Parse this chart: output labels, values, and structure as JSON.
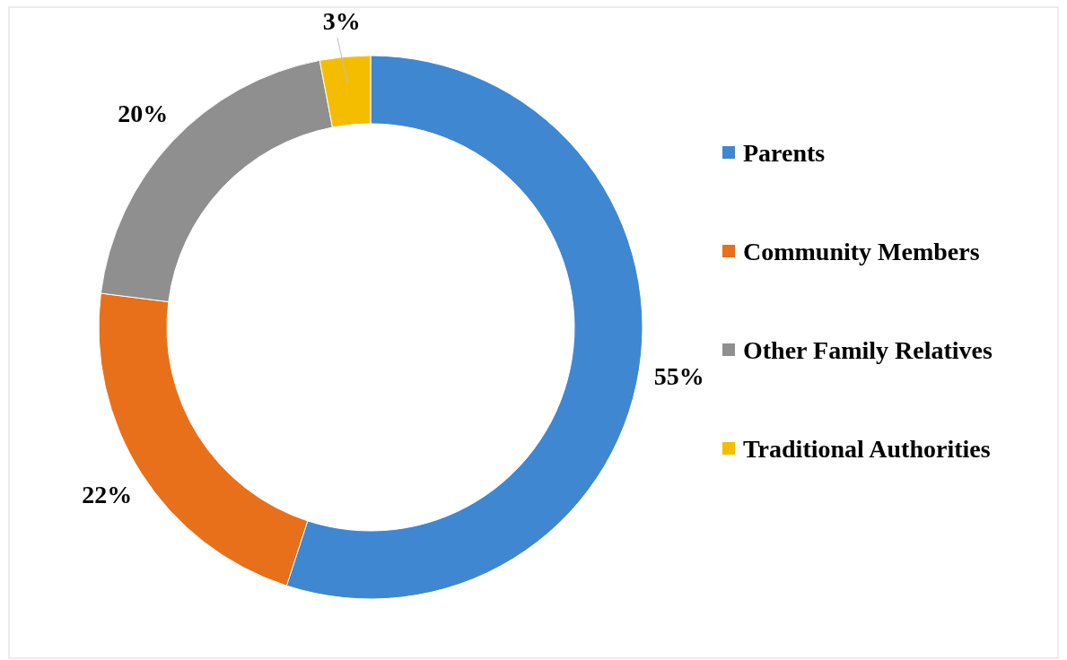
{
  "chart_data": {
    "type": "donut",
    "categories": [
      "Parents",
      "Community Members",
      "Other Family Relatives",
      "Traditional Authorities"
    ],
    "values": [
      55,
      22,
      20,
      3
    ],
    "colors": [
      "#3f87d0",
      "#e8701a",
      "#8f8f8f",
      "#f5bd00"
    ],
    "value_labels": [
      "55%",
      "22%",
      "20%",
      "3%"
    ],
    "legend": "right"
  }
}
